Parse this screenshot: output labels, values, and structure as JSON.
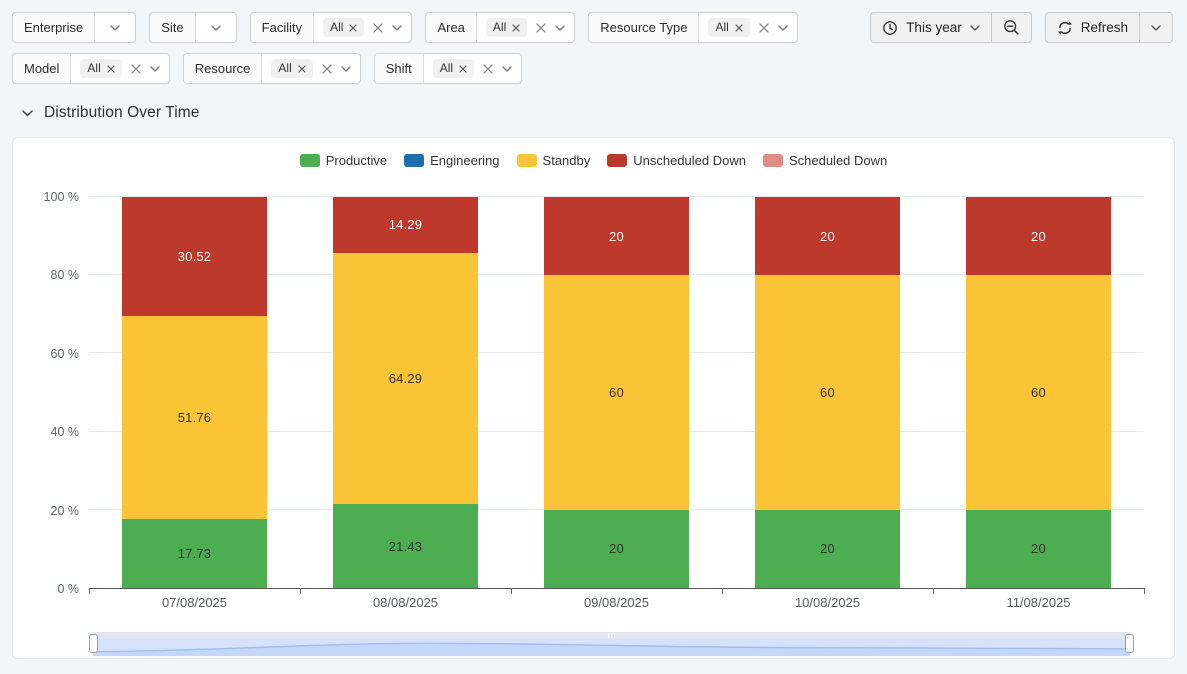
{
  "filter_bar": {
    "row1": [
      {
        "label": "Enterprise",
        "chip": null
      },
      {
        "label": "Site",
        "chip": null
      },
      {
        "label": "Facility",
        "chip": "All"
      },
      {
        "label": "Area",
        "chip": "All"
      },
      {
        "label": "Resource Type",
        "chip": "All"
      }
    ],
    "row2": [
      {
        "label": "Model",
        "chip": "All"
      },
      {
        "label": "Resource",
        "chip": "All"
      },
      {
        "label": "Shift",
        "chip": "All"
      }
    ]
  },
  "toolbar": {
    "time_range": "This year",
    "refresh": "Refresh"
  },
  "section_title": "Distribution Over Time",
  "chart_data": {
    "type": "bar",
    "stacked": true,
    "unit": "%",
    "title": "Distribution Over Time",
    "categories": [
      "07/08/2025",
      "08/08/2025",
      "09/08/2025",
      "10/08/2025",
      "11/08/2025"
    ],
    "series": [
      {
        "name": "Productive",
        "color": "#4cae51",
        "label_color": "#333333",
        "values": [
          17.73,
          21.43,
          20,
          20,
          20
        ]
      },
      {
        "name": "Engineering",
        "color": "#1a6fb0",
        "label_color": "#ffffff",
        "values": [
          0,
          0,
          0,
          0,
          0
        ]
      },
      {
        "name": "Standby",
        "color": "#fbc437",
        "label_color": "#333333",
        "values": [
          51.76,
          64.29,
          60,
          60,
          60
        ]
      },
      {
        "name": "Unscheduled Down",
        "color": "#bc392b",
        "label_color": "#ffffff",
        "values": [
          30.52,
          14.29,
          20,
          20,
          20
        ]
      },
      {
        "name": "Scheduled Down",
        "color": "#e08b83",
        "label_color": "#ffffff",
        "values": [
          0,
          0,
          0,
          0,
          0
        ]
      }
    ],
    "y_ticks": [
      "0 %",
      "20 %",
      "40 %",
      "60 %",
      "80 %",
      "100 %"
    ],
    "ylim": [
      0,
      100
    ],
    "grid": true,
    "legend_position": "top"
  }
}
